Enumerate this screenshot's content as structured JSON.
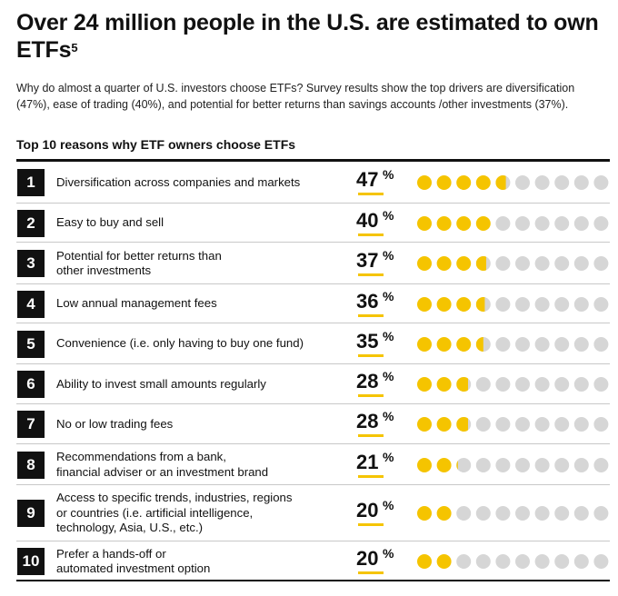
{
  "header": {
    "title": "Over 24 million people in the U.S. are estimated to own ETFs",
    "title_sup": "5",
    "lede": "Why do almost a quarter of U.S. investors choose ETFs? Survey results show the top drivers are diversification (47%), ease of trading (40%), and potential for better returns than savings accounts /other investments (37%).",
    "section_title": "Top 10 reasons why ETF owners choose ETFs"
  },
  "colors": {
    "accent": "#f5c400",
    "empty_dot": "#d6d6d6",
    "rank_bg": "#111111"
  },
  "chart_data": {
    "type": "table",
    "dots_per_row": 10,
    "unit": "%",
    "rows": [
      {
        "rank": "1",
        "lines": [
          "Diversification across companies and markets"
        ],
        "value": 47
      },
      {
        "rank": "2",
        "lines": [
          "Easy to buy and sell"
        ],
        "value": 40
      },
      {
        "rank": "3",
        "lines": [
          "Potential for better returns than",
          "other investments"
        ],
        "value": 37
      },
      {
        "rank": "4",
        "lines": [
          "Low annual management fees"
        ],
        "value": 36
      },
      {
        "rank": "5",
        "lines": [
          "Convenience (i.e. only having to buy one fund)"
        ],
        "value": 35
      },
      {
        "rank": "6",
        "lines": [
          "Ability to invest small amounts regularly"
        ],
        "value": 28
      },
      {
        "rank": "7",
        "lines": [
          "No or low trading fees"
        ],
        "value": 28
      },
      {
        "rank": "8",
        "lines": [
          "Recommendations from a bank,",
          "financial adviser or an investment brand"
        ],
        "value": 21
      },
      {
        "rank": "9",
        "lines": [
          "Access to specific trends, industries, regions",
          "or countries (i.e. artificial intelligence,",
          "technology, Asia, U.S., etc.)"
        ],
        "value": 20
      },
      {
        "rank": "10",
        "lines": [
          "Prefer a hands-off or",
          "automated  investment option"
        ],
        "value": 20
      }
    ]
  }
}
